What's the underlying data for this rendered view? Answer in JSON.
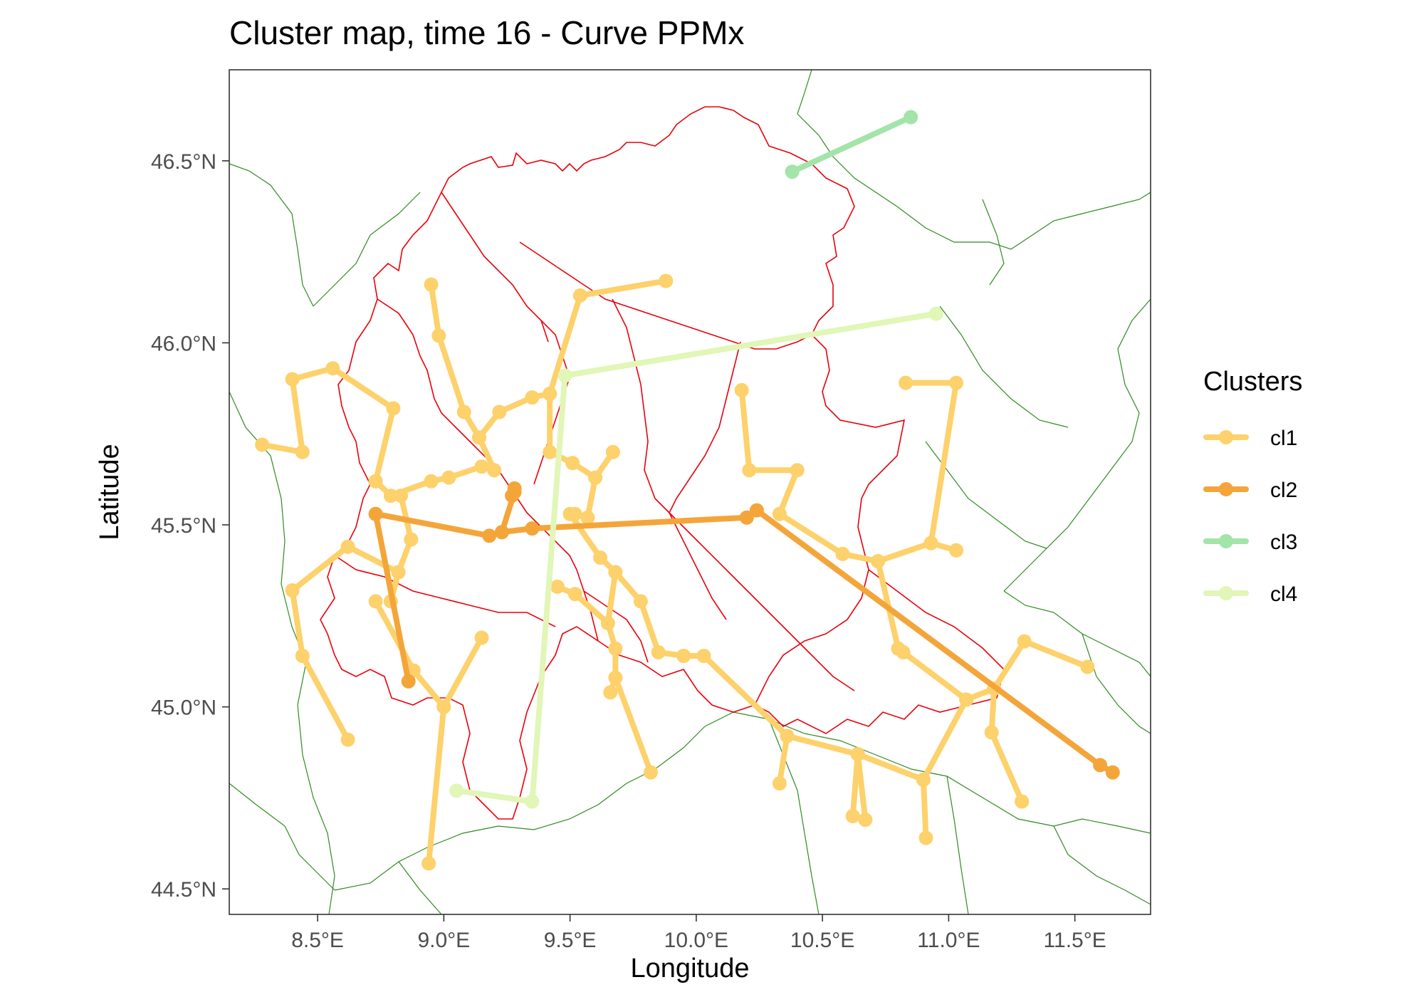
{
  "title": "Cluster map, time 16 - Curve PPMx",
  "xlabel": "Longitude",
  "ylabel": "Latitude",
  "x_ticks": [
    {
      "value": 8.5,
      "label": "8.5°E"
    },
    {
      "value": 9.0,
      "label": "9.0°E"
    },
    {
      "value": 9.5,
      "label": "9.5°E"
    },
    {
      "value": 10.0,
      "label": "10.0°E"
    },
    {
      "value": 10.5,
      "label": "10.5°E"
    },
    {
      "value": 11.0,
      "label": "11.0°E"
    },
    {
      "value": 11.5,
      "label": "11.5°E"
    }
  ],
  "y_ticks": [
    {
      "value": 44.5,
      "label": "44.5°N"
    },
    {
      "value": 45.0,
      "label": "45.0°N"
    },
    {
      "value": 45.5,
      "label": "45.5°N"
    },
    {
      "value": 46.0,
      "label": "46.0°N"
    },
    {
      "value": 46.5,
      "label": "46.5°N"
    }
  ],
  "legend": {
    "title": "Clusters",
    "items": [
      {
        "id": "cl1",
        "label": "cl1",
        "color": "#fdd16b"
      },
      {
        "id": "cl2",
        "label": "cl2",
        "color": "#f4a53a"
      },
      {
        "id": "cl3",
        "label": "cl3",
        "color": "#a3e4a8"
      },
      {
        "id": "cl4",
        "label": "cl4",
        "color": "#e1f6b7"
      }
    ]
  },
  "colors": {
    "region_border": "#e8000b",
    "other_border": "#2e8b1f",
    "panel_border": "#333333"
  },
  "chart_data": {
    "type": "map",
    "xlim": [
      8.15,
      11.8
    ],
    "ylim": [
      44.43,
      46.75
    ],
    "grid": false,
    "legend_position": "right",
    "series": [
      {
        "name": "cl1",
        "paths": [
          [
            [
              8.28,
              45.72
            ],
            [
              8.44,
              45.7
            ],
            [
              8.4,
              45.9
            ],
            [
              8.56,
              45.93
            ],
            [
              8.8,
              45.82
            ],
            [
              8.73,
              45.62
            ]
          ],
          [
            [
              8.73,
              45.62
            ],
            [
              8.79,
              45.58
            ],
            [
              8.95,
              45.62
            ],
            [
              9.02,
              45.63
            ],
            [
              9.15,
              45.66
            ]
          ],
          [
            [
              8.83,
              45.58
            ],
            [
              8.87,
              45.46
            ],
            [
              8.82,
              45.37
            ],
            [
              8.62,
              45.44
            ],
            [
              8.4,
              45.32
            ],
            [
              8.44,
              45.14
            ],
            [
              8.62,
              44.91
            ]
          ],
          [
            [
              8.73,
              45.29
            ],
            [
              8.88,
              45.1
            ],
            [
              9.0,
              45.0
            ],
            [
              8.94,
              44.57
            ]
          ],
          [
            [
              9.0,
              45.0
            ],
            [
              9.15,
              45.19
            ]
          ],
          [
            [
              8.82,
              45.37
            ],
            [
              8.79,
              45.29
            ]
          ],
          [
            [
              8.95,
              46.16
            ],
            [
              8.98,
              46.02
            ],
            [
              9.08,
              45.81
            ],
            [
              9.14,
              45.74
            ],
            [
              9.2,
              45.65
            ]
          ],
          [
            [
              9.14,
              45.74
            ],
            [
              9.22,
              45.81
            ],
            [
              9.35,
              45.85
            ],
            [
              9.42,
              45.86
            ],
            [
              9.54,
              46.13
            ],
            [
              9.88,
              46.17
            ]
          ],
          [
            [
              9.42,
              45.86
            ],
            [
              9.42,
              45.7
            ],
            [
              9.51,
              45.67
            ],
            [
              9.6,
              45.63
            ],
            [
              9.67,
              45.7
            ]
          ],
          [
            [
              9.6,
              45.63
            ],
            [
              9.57,
              45.52
            ],
            [
              9.52,
              45.53
            ]
          ],
          [
            [
              9.5,
              45.53
            ],
            [
              9.62,
              45.41
            ],
            [
              9.68,
              45.37
            ],
            [
              9.78,
              45.29
            ],
            [
              9.85,
              45.15
            ],
            [
              9.95,
              45.14
            ]
          ],
          [
            [
              9.68,
              45.37
            ],
            [
              9.65,
              45.23
            ],
            [
              9.68,
              45.16
            ],
            [
              9.68,
              45.08
            ],
            [
              9.66,
              45.04
            ]
          ],
          [
            [
              9.68,
              45.08
            ],
            [
              9.82,
              44.82
            ]
          ],
          [
            [
              9.45,
              45.33
            ],
            [
              9.52,
              45.31
            ],
            [
              9.65,
              45.23
            ]
          ],
          [
            [
              9.95,
              45.14
            ],
            [
              10.03,
              45.14
            ],
            [
              10.36,
              44.92
            ],
            [
              10.33,
              44.79
            ]
          ],
          [
            [
              10.36,
              44.92
            ],
            [
              10.64,
              44.87
            ],
            [
              10.62,
              44.7
            ]
          ],
          [
            [
              10.64,
              44.87
            ],
            [
              10.67,
              44.69
            ]
          ],
          [
            [
              10.64,
              44.87
            ],
            [
              10.9,
              44.8
            ],
            [
              10.91,
              44.64
            ]
          ],
          [
            [
              10.9,
              44.8
            ],
            [
              11.07,
              45.02
            ],
            [
              11.18,
              45.05
            ],
            [
              11.3,
              45.18
            ],
            [
              11.55,
              45.11
            ]
          ],
          [
            [
              11.18,
              45.05
            ],
            [
              11.17,
              44.93
            ],
            [
              11.29,
              44.74
            ]
          ],
          [
            [
              10.18,
              45.87
            ],
            [
              10.21,
              45.65
            ],
            [
              10.4,
              45.65
            ],
            [
              10.33,
              45.53
            ],
            [
              10.58,
              45.42
            ],
            [
              10.72,
              45.4
            ],
            [
              10.93,
              45.45
            ],
            [
              11.03,
              45.43
            ]
          ],
          [
            [
              10.93,
              45.45
            ],
            [
              11.03,
              45.89
            ],
            [
              10.83,
              45.89
            ]
          ],
          [
            [
              10.72,
              45.4
            ],
            [
              10.8,
              45.16
            ],
            [
              10.82,
              45.15
            ],
            [
              11.07,
              45.02
            ]
          ]
        ]
      },
      {
        "name": "cl2",
        "paths": [
          [
            [
              8.73,
              45.53
            ],
            [
              8.86,
              45.07
            ]
          ],
          [
            [
              8.73,
              45.53
            ],
            [
              9.18,
              45.47
            ],
            [
              9.23,
              45.48
            ],
            [
              9.28,
              45.59
            ]
          ],
          [
            [
              9.28,
              45.6
            ],
            [
              9.27,
              45.58
            ]
          ],
          [
            [
              9.23,
              45.48
            ],
            [
              9.35,
              45.49
            ],
            [
              10.2,
              45.52
            ],
            [
              10.24,
              45.54
            ],
            [
              11.6,
              44.84
            ],
            [
              11.65,
              44.82
            ]
          ]
        ]
      },
      {
        "name": "cl3",
        "paths": [
          [
            [
              10.38,
              46.47
            ],
            [
              10.85,
              46.62
            ]
          ]
        ]
      },
      {
        "name": "cl4",
        "paths": [
          [
            [
              9.05,
              44.77
            ],
            [
              9.35,
              44.74
            ],
            [
              9.48,
              45.91
            ],
            [
              10.95,
              46.08
            ]
          ]
        ]
      }
    ]
  }
}
